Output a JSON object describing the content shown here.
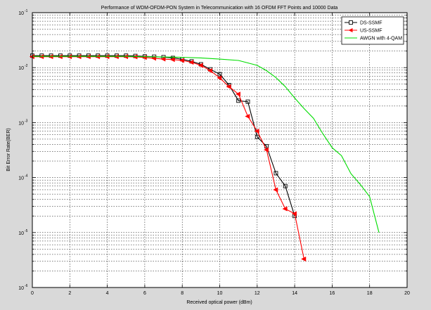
{
  "chart_data": {
    "type": "line",
    "title": "Performance of WDM-OFDM-PON System in Telecommunication with 16 OFDM FFT Points and 10000 Data",
    "xlabel": "Received optical power (dBm)",
    "ylabel": "Bit Error Rate(BER)",
    "xlim": [
      0,
      20
    ],
    "ylim": [
      1e-06,
      0.1
    ],
    "yscale": "log",
    "grid": true,
    "legend_position": "top-right",
    "x_ticks": [
      0,
      2,
      4,
      6,
      8,
      10,
      12,
      14,
      16,
      18,
      20
    ],
    "x_tick_labels": [
      "0",
      "2",
      "4",
      "6",
      "8",
      "10",
      "12",
      "14",
      "16",
      "18",
      "20"
    ],
    "y_ticks": [
      {
        "value": 1e-06,
        "base": "10",
        "exp": "-6"
      },
      {
        "value": 1e-05,
        "base": "10",
        "exp": "-5"
      },
      {
        "value": 0.0001,
        "base": "10",
        "exp": "-4"
      },
      {
        "value": 0.001,
        "base": "10",
        "exp": "-3"
      },
      {
        "value": 0.01,
        "base": "10",
        "exp": "-2"
      },
      {
        "value": 0.1,
        "base": "10",
        "exp": "-1"
      }
    ],
    "series": [
      {
        "name": "DS-SSMF",
        "color": "#000000",
        "marker": "square",
        "x": [
          0,
          0.5,
          1,
          1.5,
          2,
          2.5,
          3,
          3.5,
          4,
          4.5,
          5,
          5.5,
          6,
          6.5,
          7,
          7.5,
          8,
          8.5,
          9,
          9.5,
          10,
          10.5,
          11,
          11.5,
          12,
          12.5,
          13,
          13.5,
          14,
          14.5
        ],
        "y": [
          0.0165,
          0.0165,
          0.0165,
          0.0165,
          0.0165,
          0.0165,
          0.0165,
          0.0165,
          0.0165,
          0.0165,
          0.0165,
          0.0163,
          0.016,
          0.0158,
          0.0155,
          0.015,
          0.0142,
          0.013,
          0.0115,
          0.0093,
          0.0076,
          0.0048,
          0.0025,
          0.0024,
          0.00055,
          0.00037,
          0.00012,
          7e-05,
          2e-05,
          null
        ]
      },
      {
        "name": "US-SSMF",
        "color": "#ff0000",
        "marker": "triangle-left",
        "x": [
          0,
          0.5,
          1,
          1.5,
          2,
          2.5,
          3,
          3.5,
          4,
          4.5,
          5,
          5.5,
          6,
          6.5,
          7,
          7.5,
          8,
          8.5,
          9,
          9.5,
          10,
          10.5,
          11,
          11.5,
          12,
          12.5,
          13,
          13.5,
          14,
          14.5,
          15
        ],
        "y": [
          0.0158,
          0.0158,
          0.0158,
          0.0158,
          0.0158,
          0.0158,
          0.0158,
          0.0158,
          0.0158,
          0.0158,
          0.0158,
          0.0157,
          0.0153,
          0.0148,
          0.0143,
          0.014,
          0.0135,
          0.0125,
          0.011,
          0.0088,
          0.0065,
          0.0045,
          0.0033,
          0.0013,
          0.0007,
          0.00032,
          6e-05,
          2.7e-05,
          2.2e-05,
          3.3e-06,
          null
        ]
      },
      {
        "name": "AWGN with 4-QAM",
        "color": "#00dd00",
        "marker": "none",
        "x": [
          0,
          1,
          2,
          3,
          4,
          5,
          6,
          7,
          8,
          9,
          10,
          11,
          12,
          12.5,
          13,
          13.5,
          14,
          14.5,
          15,
          15.5,
          16,
          16.5,
          17,
          17.5,
          18,
          18.5
        ],
        "y": [
          0.016,
          0.016,
          0.016,
          0.016,
          0.016,
          0.016,
          0.0158,
          0.0156,
          0.0154,
          0.015,
          0.0143,
          0.0135,
          0.011,
          0.0088,
          0.0066,
          0.0045,
          0.0028,
          0.0018,
          0.0012,
          0.00063,
          0.00035,
          0.00025,
          0.000118,
          7.5e-05,
          4.5e-05,
          1e-05
        ]
      }
    ]
  }
}
